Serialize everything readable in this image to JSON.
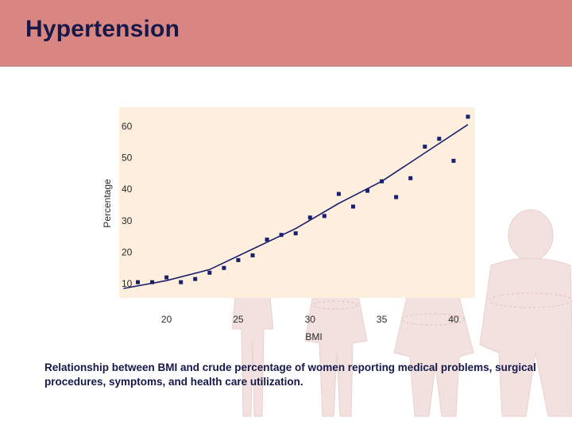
{
  "slide": {
    "title": "Hypertension",
    "caption": "Relationship between BMI and crude percentage of women reporting medical problems, surgical procedures, symptoms, and health care utilization."
  },
  "colors": {
    "header": "#d98682",
    "title_text": "#16184a",
    "plot_background": "#fdeede",
    "markers": "#1a1f6e",
    "trend_line": "#1a1f6e"
  },
  "chart_data": {
    "type": "scatter",
    "title": "",
    "xlabel": "BMI",
    "ylabel": "Percentage",
    "xlim": [
      16.7,
      41.5
    ],
    "ylim": [
      5.5,
      66
    ],
    "xticks": [
      20,
      25,
      30,
      35,
      40
    ],
    "yticks": [
      10,
      20,
      30,
      40,
      50,
      60
    ],
    "grid": false,
    "series": [
      {
        "points": [
          [
            18,
            10.5
          ],
          [
            19,
            10.5
          ],
          [
            20,
            12
          ],
          [
            21,
            10.5
          ],
          [
            22,
            11.5
          ],
          [
            23,
            13.5
          ],
          [
            24,
            15
          ],
          [
            25,
            17.5
          ],
          [
            26,
            19
          ],
          [
            27,
            24
          ],
          [
            28,
            25.5
          ],
          [
            29,
            26
          ],
          [
            30,
            31
          ],
          [
            31,
            31.5
          ],
          [
            32,
            38.5
          ],
          [
            33,
            34.5
          ],
          [
            34,
            39.5
          ],
          [
            35,
            42.5
          ],
          [
            36,
            37.5
          ],
          [
            37,
            43.5
          ],
          [
            38,
            53.5
          ],
          [
            39,
            56
          ],
          [
            40,
            49
          ],
          [
            41,
            63
          ]
        ]
      }
    ],
    "trend": {
      "type": "line",
      "points": [
        [
          17,
          8.5
        ],
        [
          20,
          11
        ],
        [
          23,
          14.5
        ],
        [
          26,
          21
        ],
        [
          29,
          27.5
        ],
        [
          32,
          35.5
        ],
        [
          35,
          42.5
        ],
        [
          38,
          51.5
        ],
        [
          41,
          60.5
        ]
      ]
    }
  }
}
